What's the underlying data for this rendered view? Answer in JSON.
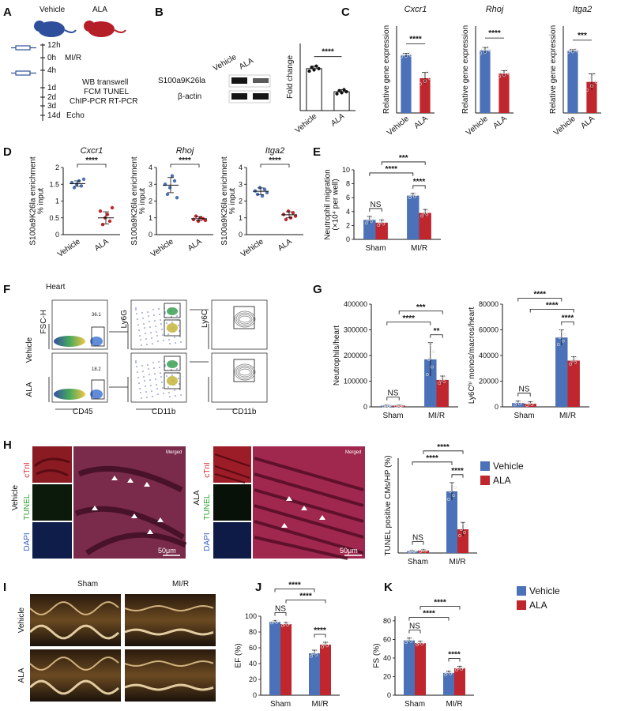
{
  "colors": {
    "vehicle": "#4b72b8",
    "ala": "#c0262d",
    "axis": "#111111"
  },
  "panels": {
    "A": {
      "label": "A",
      "groups": [
        "Vehicle",
        "ALA"
      ],
      "timeline": [
        {
          "time": "12h",
          "event": "",
          "injection": true
        },
        {
          "time": "0h",
          "event": "MI/R",
          "injection": false
        },
        {
          "time": "4h",
          "event": "",
          "injection": true
        },
        {
          "time": "1d",
          "event": "",
          "injection": false
        },
        {
          "time": "2d",
          "event": "",
          "injection": false
        },
        {
          "time": "3d",
          "event": "",
          "injection": false
        },
        {
          "time": "14d",
          "event": "Echo",
          "injection": false
        }
      ],
      "assays": [
        "WB transwell",
        "FCM TUNEL",
        "ChIP-PCR  RT-PCR"
      ]
    },
    "B": {
      "label": "B",
      "lanes": [
        "Vehicle",
        "ALA"
      ],
      "blots": [
        "S100a9K26la",
        "β-actin"
      ]
    },
    "F": {
      "label": "F",
      "title": "Heart",
      "rows": [
        "Vehicle",
        "ALA"
      ],
      "gate_values": [
        "36.1",
        "18.2"
      ],
      "y_labels": [
        "FSC-H",
        "Ly6G",
        "Ly6C"
      ],
      "x_labels": [
        "CD45",
        "CD11b",
        "CD11b"
      ]
    },
    "H": {
      "label": "H",
      "vehicle": {
        "group": "Vehicle",
        "channels": [
          "cTnI",
          "TUNEL",
          "DAPI"
        ],
        "merged": "Merged",
        "scale": "50μm"
      },
      "ala": {
        "group": "ALA",
        "channels": [
          "cTnI",
          "TUNEL",
          "DAPI"
        ],
        "merged": "Merged",
        "scale": "50μm"
      }
    },
    "I": {
      "label": "I",
      "columns": [
        "Sham",
        "MI/R"
      ],
      "rows": [
        "Vehicle",
        "ALA"
      ]
    }
  },
  "legend": {
    "items": [
      "Vehicle",
      "ALA"
    ]
  },
  "chart_data": [
    {
      "id": "B",
      "type": "bar",
      "label": "B",
      "title": "",
      "ylabel": "Fold change",
      "categories": [
        "Vehicle",
        "ALA"
      ],
      "values": [
        1.0,
        0.45
      ],
      "errors": [
        0.06,
        0.05
      ],
      "ylim": [
        0,
        1.6
      ],
      "yticks": [],
      "x_italic": true,
      "brackets": [
        {
          "from": 0,
          "to": 1,
          "text": "****"
        }
      ]
    },
    {
      "id": "C1",
      "type": "bar",
      "label": "C",
      "title": "Cxcr1",
      "ylabel": "Relative gene expression",
      "categories": [
        "Vehicle",
        "ALA"
      ],
      "values": [
        1.0,
        0.6
      ],
      "errors": [
        0.03,
        0.1
      ],
      "ylim": [
        0,
        1.5
      ],
      "yticks": [],
      "x_italic": true,
      "brackets": [
        {
          "from": 0,
          "to": 1,
          "text": "****"
        }
      ]
    },
    {
      "id": "C2",
      "type": "bar",
      "label": "",
      "title": "Rhoj",
      "ylabel": "Relative gene expression",
      "categories": [
        "Vehicle",
        "ALA"
      ],
      "values": [
        1.08,
        0.68
      ],
      "errors": [
        0.05,
        0.05
      ],
      "ylim": [
        0,
        1.5
      ],
      "yticks": [],
      "x_italic": true,
      "brackets": [
        {
          "from": 0,
          "to": 1,
          "text": "****"
        }
      ]
    },
    {
      "id": "C3",
      "type": "bar",
      "label": "",
      "title": "Itga2",
      "ylabel": "Relative gene expression",
      "categories": [
        "Vehicle",
        "ALA"
      ],
      "values": [
        1.0,
        0.5
      ],
      "errors": [
        0.02,
        0.13
      ],
      "ylim": [
        0,
        1.4
      ],
      "yticks": [],
      "x_italic": true,
      "brackets": [
        {
          "from": 0,
          "to": 1,
          "text": "***"
        }
      ]
    },
    {
      "id": "D1",
      "type": "scatter",
      "label": "D",
      "title": "Cxcr1",
      "ylabel": "S100a9K26la enrichment\n% input",
      "categories": [
        "Vehicle",
        "ALA"
      ],
      "points": [
        [
          1.55,
          1.4,
          1.5,
          1.6,
          1.45,
          1.65
        ],
        [
          0.7,
          0.3,
          0.5,
          0.6,
          0.4,
          0.8
        ]
      ],
      "means": [
        1.52,
        0.5
      ],
      "sds": [
        0.08,
        0.18
      ],
      "ylim": [
        0,
        2.0
      ],
      "yticks": [
        0.0,
        0.5,
        1.0,
        1.5,
        2.0
      ],
      "x_italic": true,
      "brackets": [
        {
          "from": 0,
          "to": 1,
          "text": "****"
        }
      ]
    },
    {
      "id": "D2",
      "type": "scatter",
      "label": "",
      "title": "Rhoj",
      "ylabel": "S100a9K26la enrichment\n% input",
      "categories": [
        "Vehicle",
        "ALA"
      ],
      "points": [
        [
          3.0,
          2.4,
          2.8,
          3.5,
          3.2,
          2.2
        ],
        [
          0.9,
          1.1,
          0.8,
          1.0,
          0.95,
          0.85
        ]
      ],
      "means": [
        2.95,
        0.95
      ],
      "sds": [
        0.45,
        0.12
      ],
      "ylim": [
        0,
        4
      ],
      "yticks": [
        0,
        1,
        2,
        3,
        4
      ],
      "x_italic": true,
      "brackets": [
        {
          "from": 0,
          "to": 1,
          "text": "****"
        }
      ]
    },
    {
      "id": "D3",
      "type": "scatter",
      "label": "",
      "title": "Itga2",
      "ylabel": "S100a9K26la enrichment\n% input",
      "categories": [
        "Vehicle",
        "ALA"
      ],
      "points": [
        [
          2.6,
          2.4,
          2.8,
          2.3,
          2.7,
          2.5
        ],
        [
          1.2,
          0.9,
          1.4,
          1.0,
          1.3,
          1.1
        ]
      ],
      "means": [
        2.58,
        1.18
      ],
      "sds": [
        0.2,
        0.18
      ],
      "ylim": [
        0,
        4
      ],
      "yticks": [
        0,
        1,
        2,
        3,
        4
      ],
      "x_italic": true,
      "brackets": [
        {
          "from": 0,
          "to": 1,
          "text": "****"
        }
      ]
    },
    {
      "id": "E",
      "type": "bar",
      "label": "E",
      "title": "",
      "ylabel": "Neutrophil migration\n(×10⁴ per well)",
      "categories": [
        "Sham",
        "MI/R"
      ],
      "series": [
        {
          "name": "Vehicle",
          "values": [
            2.8,
            6.3
          ]
        },
        {
          "name": "ALA",
          "values": [
            2.4,
            3.8
          ]
        }
      ],
      "errors": [
        [
          0.5,
          0.3
        ],
        [
          0.4,
          0.5
        ]
      ],
      "ylim": [
        0,
        10
      ],
      "yticks": [
        0,
        2,
        4,
        6,
        8,
        10
      ],
      "x_italic": false,
      "brackets": [
        {
          "a": [
            0,
            0
          ],
          "b": [
            0,
            1
          ],
          "text": "NS"
        },
        {
          "a": [
            1,
            0
          ],
          "b": [
            1,
            1
          ],
          "text": "****"
        },
        {
          "a": [
            0,
            0
          ],
          "b": [
            1,
            0
          ],
          "text": "****"
        },
        {
          "a": [
            0,
            1
          ],
          "b": [
            1,
            1
          ],
          "text": "***"
        }
      ]
    },
    {
      "id": "G1",
      "type": "bar",
      "label": "G",
      "title": "",
      "ylabel": "Neutrophils/heart",
      "categories": [
        "Sham",
        "MI/R"
      ],
      "series": [
        {
          "name": "Vehicle",
          "values": [
            5000,
            185000
          ]
        },
        {
          "name": "ALA",
          "values": [
            5000,
            105000
          ]
        }
      ],
      "errors": [
        [
          2000,
          65000
        ],
        [
          2000,
          15000
        ]
      ],
      "ylim": [
        0,
        400000
      ],
      "yticks": [
        0,
        100000,
        200000,
        300000,
        400000
      ],
      "x_italic": false,
      "brackets": [
        {
          "a": [
            0,
            0
          ],
          "b": [
            0,
            1
          ],
          "text": "NS"
        },
        {
          "a": [
            1,
            0
          ],
          "b": [
            1,
            1
          ],
          "text": "**"
        },
        {
          "a": [
            0,
            0
          ],
          "b": [
            1,
            0
          ],
          "text": "****"
        },
        {
          "a": [
            0,
            1
          ],
          "b": [
            1,
            1
          ],
          "text": "***"
        }
      ]
    },
    {
      "id": "G2",
      "type": "bar",
      "label": "",
      "title": "",
      "ylabel": "Ly6Cʰⁱ monos/macros/heart",
      "categories": [
        "Sham",
        "MI/R"
      ],
      "series": [
        {
          "name": "Vehicle",
          "values": [
            3000,
            54000
          ]
        },
        {
          "name": "ALA",
          "values": [
            2500,
            36000
          ]
        }
      ],
      "errors": [
        [
          1500,
          6000
        ],
        [
          1500,
          3000
        ]
      ],
      "ylim": [
        0,
        80000
      ],
      "yticks": [
        0,
        20000,
        40000,
        60000,
        80000
      ],
      "x_italic": false,
      "brackets": [
        {
          "a": [
            0,
            0
          ],
          "b": [
            0,
            1
          ],
          "text": "NS"
        },
        {
          "a": [
            1,
            0
          ],
          "b": [
            1,
            1
          ],
          "text": "****"
        },
        {
          "a": [
            0,
            1
          ],
          "b": [
            1,
            1
          ],
          "text": "****"
        },
        {
          "a": [
            0,
            0
          ],
          "b": [
            1,
            0
          ],
          "text": "****"
        }
      ]
    },
    {
      "id": "H2",
      "type": "bar",
      "label": "",
      "title": "",
      "ylabel": "TUNEL  positive CMs/HP (%)",
      "categories": [
        "Sham",
        "MI/R"
      ],
      "series": [
        {
          "name": "Vehicle",
          "values": [
            0.6,
            19.5
          ]
        },
        {
          "name": "ALA",
          "values": [
            0.8,
            7.5
          ]
        }
      ],
      "errors": [
        [
          0.2,
          2.8
        ],
        [
          0.3,
          2.2
        ]
      ],
      "ylim": [
        0,
        30
      ],
      "yticks": [],
      "x_italic": false,
      "brackets": [
        {
          "a": [
            0,
            0
          ],
          "b": [
            0,
            1
          ],
          "text": "NS"
        },
        {
          "a": [
            1,
            0
          ],
          "b": [
            1,
            1
          ],
          "text": "****"
        },
        {
          "a": [
            0,
            0
          ],
          "b": [
            1,
            0
          ],
          "text": "****"
        },
        {
          "a": [
            0,
            1
          ],
          "b": [
            1,
            1
          ],
          "text": "****"
        }
      ]
    },
    {
      "id": "J",
      "type": "bar",
      "label": "J",
      "title": "",
      "ylabel": "EF (%)",
      "categories": [
        "Sham",
        "MI/R"
      ],
      "series": [
        {
          "name": "Vehicle",
          "values": [
            93,
            53
          ]
        },
        {
          "name": "ALA",
          "values": [
            90,
            64
          ]
        }
      ],
      "errors": [
        [
          1.5,
          4
        ],
        [
          2,
          3
        ]
      ],
      "ylim": [
        0,
        100
      ],
      "yticks": [
        0,
        20,
        40,
        60,
        80,
        100
      ],
      "x_italic": false,
      "brackets": [
        {
          "a": [
            0,
            0
          ],
          "b": [
            0,
            1
          ],
          "text": "NS"
        },
        {
          "a": [
            1,
            0
          ],
          "b": [
            1,
            1
          ],
          "text": "****"
        },
        {
          "a": [
            0,
            1
          ],
          "b": [
            1,
            1
          ],
          "text": "****"
        },
        {
          "a": [
            0,
            0
          ],
          "b": [
            1,
            0
          ],
          "text": "****"
        }
      ]
    },
    {
      "id": "K",
      "type": "bar",
      "label": "K",
      "title": "",
      "ylabel": "FS (%)",
      "categories": [
        "Sham",
        "MI/R"
      ],
      "series": [
        {
          "name": "Vehicle",
          "values": [
            59,
            24
          ]
        },
        {
          "name": "ALA",
          "values": [
            56,
            29
          ]
        }
      ],
      "errors": [
        [
          2.5,
          2
        ],
        [
          2,
          2
        ]
      ],
      "ylim": [
        0,
        85
      ],
      "yticks": [
        0,
        20,
        40,
        60,
        80
      ],
      "x_italic": false,
      "brackets": [
        {
          "a": [
            0,
            0
          ],
          "b": [
            0,
            1
          ],
          "text": "NS"
        },
        {
          "a": [
            1,
            0
          ],
          "b": [
            1,
            1
          ],
          "text": "****"
        },
        {
          "a": [
            0,
            0
          ],
          "b": [
            1,
            0
          ],
          "text": "****"
        },
        {
          "a": [
            0,
            1
          ],
          "b": [
            1,
            1
          ],
          "text": "****"
        }
      ]
    }
  ]
}
